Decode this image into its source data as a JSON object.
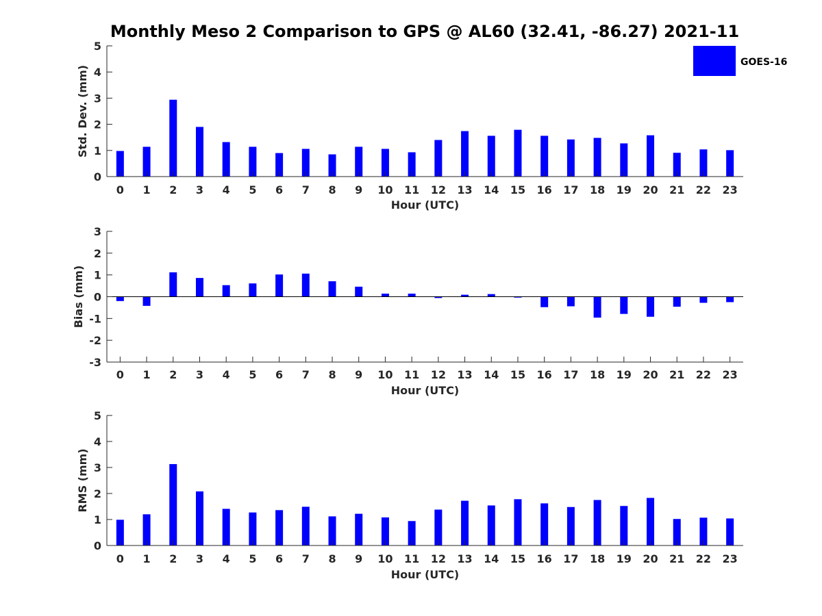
{
  "figure": {
    "title": "Monthly Meso 2 Comparison to GPS @ AL60 (32.41, -86.27) 2021-11",
    "legend": {
      "label": "GOES-16",
      "color": "#0000ff",
      "placement": "top-right"
    }
  },
  "chart_data": [
    {
      "type": "bar",
      "xlabel": "Hour (UTC)",
      "ylabel": "Std. Dev. (mm)",
      "ylim": [
        0,
        5
      ],
      "yticks": [
        "0",
        "1",
        "2",
        "3",
        "4",
        "5"
      ],
      "categories": [
        "0",
        "1",
        "2",
        "3",
        "4",
        "5",
        "6",
        "7",
        "8",
        "9",
        "10",
        "11",
        "12",
        "13",
        "14",
        "15",
        "16",
        "17",
        "18",
        "19",
        "20",
        "21",
        "22",
        "23"
      ],
      "series": [
        {
          "name": "GOES-16",
          "color": "#0000ff",
          "values": [
            0.98,
            1.14,
            2.94,
            1.9,
            1.32,
            1.14,
            0.9,
            1.06,
            0.85,
            1.14,
            1.06,
            0.93,
            1.4,
            1.74,
            1.56,
            1.79,
            1.56,
            1.42,
            1.48,
            1.27,
            1.58,
            0.91,
            1.04,
            1.01
          ]
        }
      ]
    },
    {
      "type": "bar",
      "xlabel": "Hour (UTC)",
      "ylabel": "Bias (mm)",
      "ylim": [
        -3,
        3
      ],
      "yticks": [
        "-3",
        "-2",
        "-1",
        "0",
        "1",
        "2",
        "3"
      ],
      "categories": [
        "0",
        "1",
        "2",
        "3",
        "4",
        "5",
        "6",
        "7",
        "8",
        "9",
        "10",
        "11",
        "12",
        "13",
        "14",
        "15",
        "16",
        "17",
        "18",
        "19",
        "20",
        "21",
        "22",
        "23"
      ],
      "series": [
        {
          "name": "GOES-16",
          "color": "#0000ff",
          "values": [
            -0.2,
            -0.42,
            1.12,
            0.86,
            0.53,
            0.61,
            1.02,
            1.06,
            0.71,
            0.46,
            0.14,
            0.14,
            -0.06,
            0.09,
            0.12,
            -0.04,
            -0.48,
            -0.44,
            -0.96,
            -0.79,
            -0.92,
            -0.46,
            -0.28,
            -0.25
          ]
        }
      ]
    },
    {
      "type": "bar",
      "xlabel": "Hour (UTC)",
      "ylabel": "RMS (mm)",
      "ylim": [
        0,
        5
      ],
      "yticks": [
        "0",
        "1",
        "2",
        "3",
        "4",
        "5"
      ],
      "categories": [
        "0",
        "1",
        "2",
        "3",
        "4",
        "5",
        "6",
        "7",
        "8",
        "9",
        "10",
        "11",
        "12",
        "13",
        "14",
        "15",
        "16",
        "17",
        "18",
        "19",
        "20",
        "21",
        "22",
        "23"
      ],
      "series": [
        {
          "name": "GOES-16",
          "color": "#0000ff",
          "values": [
            0.99,
            1.2,
            3.13,
            2.08,
            1.41,
            1.27,
            1.36,
            1.49,
            1.12,
            1.22,
            1.08,
            0.94,
            1.38,
            1.72,
            1.54,
            1.78,
            1.62,
            1.48,
            1.75,
            1.52,
            1.83,
            1.02,
            1.07,
            1.04
          ]
        }
      ]
    }
  ]
}
